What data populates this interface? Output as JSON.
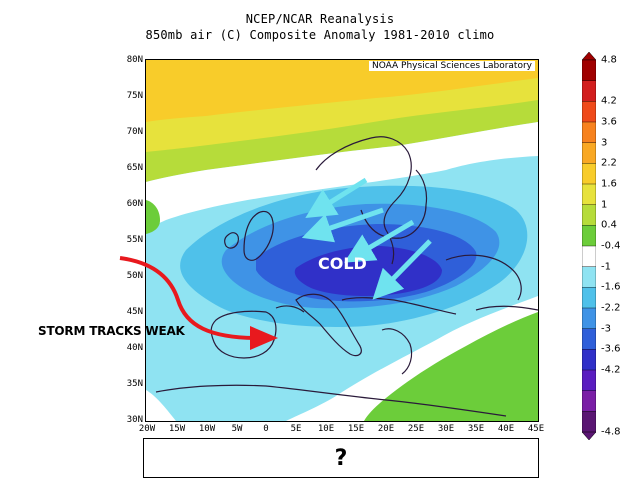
{
  "title_line1": "NCEP/NCAR Reanalysis",
  "title_line2": "850mb air (C) Composite Anomaly 1981-2010 climo",
  "credit": "NOAA Physical Sciences Laboratory",
  "annotations": {
    "cold": "COLD",
    "storm_tracks": "STORM TRACKS WEAK",
    "question": "?"
  },
  "lat_labels": [
    "80N",
    "75N",
    "70N",
    "65N",
    "60N",
    "55N",
    "50N",
    "45N",
    "40N",
    "35N",
    "30N"
  ],
  "lon_labels": [
    "20W",
    "15W",
    "10W",
    "5W",
    "0",
    "5E",
    "10E",
    "15E",
    "20E",
    "25E",
    "30E",
    "35E",
    "40E",
    "45E"
  ],
  "colorbar": {
    "labels": [
      "4.8",
      "4.2",
      "3.6",
      "3",
      "2.2",
      "1.6",
      "1",
      "0.4",
      "-0.4",
      "-1",
      "-1.6",
      "-2.2",
      "-3",
      "-3.6",
      "-4.2",
      "-4.8"
    ],
    "colors": [
      "#a00000",
      "#d21e1e",
      "#ef4a1a",
      "#f7821e",
      "#f9a823",
      "#f8cc2a",
      "#e7e23c",
      "#b6dc3a",
      "#6ccd3a",
      "#ffffff",
      "#8fe3f2",
      "#4fc1ea",
      "#3f93e6",
      "#2f5fd9",
      "#3030c8",
      "#5a1dc0",
      "#7a1ea6",
      "#5a1673"
    ]
  }
}
